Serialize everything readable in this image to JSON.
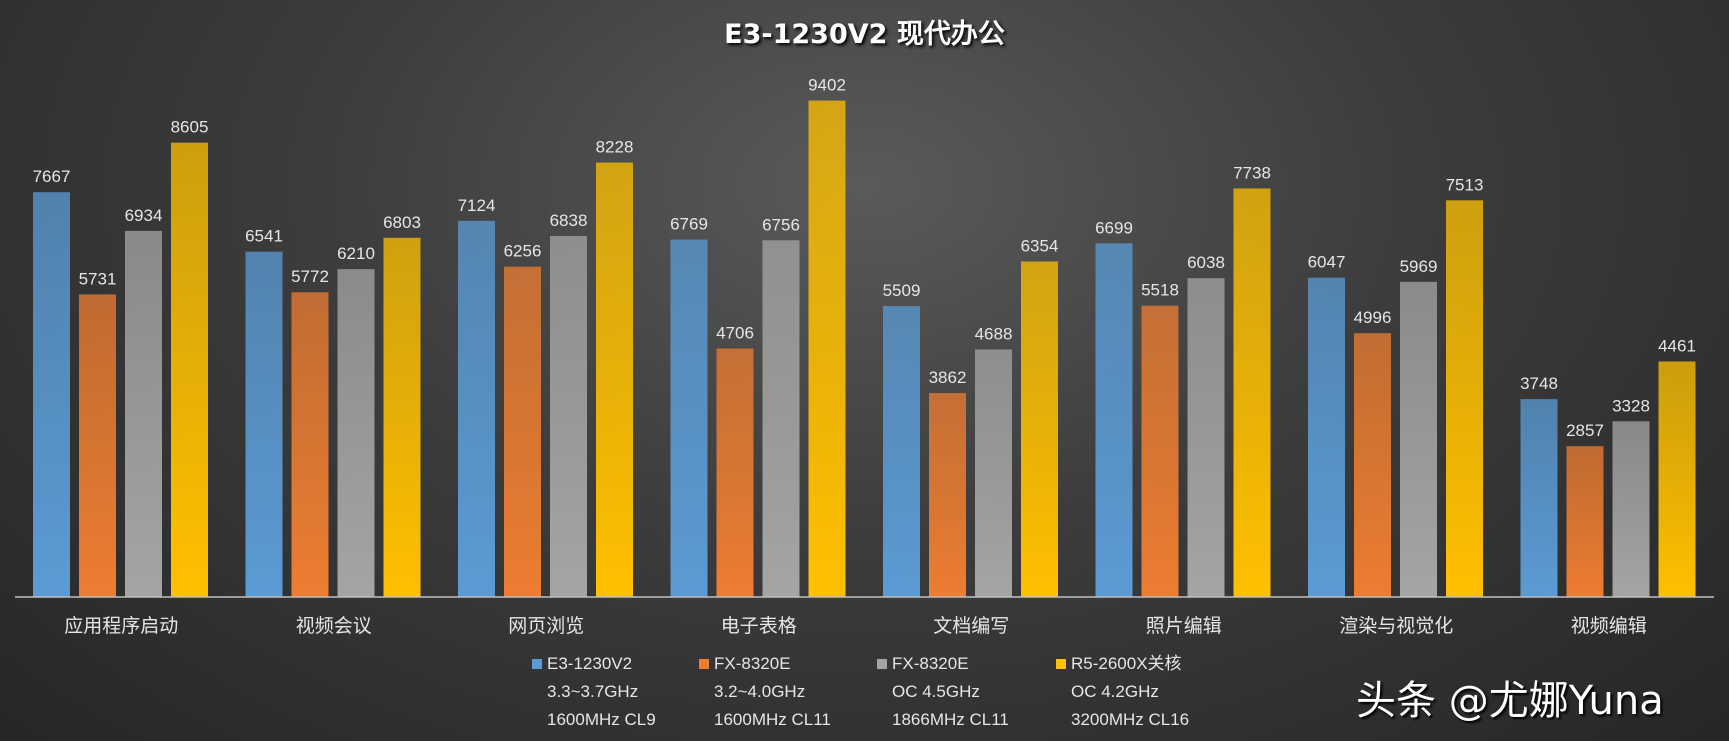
{
  "chart_data": {
    "type": "bar",
    "title": "E3-1230V2 现代办公",
    "categories": [
      "应用程序启动",
      "视频会议",
      "网页浏览",
      "电子表格",
      "文档编写",
      "照片编辑",
      "渲染与视觉化",
      "视频编辑"
    ],
    "series": [
      {
        "name": "E3-1230V2",
        "details": [
          "3.3~3.7GHz",
          "1600MHz CL9"
        ],
        "color": "#5b9bd5",
        "values": [
          7667,
          6541,
          7124,
          6769,
          5509,
          6699,
          6047,
          3748
        ]
      },
      {
        "name": "FX-8320E",
        "details": [
          "3.2~4.0GHz",
          "1600MHz CL11"
        ],
        "color": "#ed7d31",
        "values": [
          5731,
          5772,
          6256,
          4706,
          3862,
          5518,
          4996,
          2857
        ]
      },
      {
        "name": "FX-8320E",
        "details": [
          "OC 4.5GHz",
          "1866MHz CL11"
        ],
        "color": "#a5a5a5",
        "values": [
          6934,
          6210,
          6838,
          6756,
          4688,
          6038,
          5969,
          3328
        ]
      },
      {
        "name": "R5-2600X关核",
        "details": [
          "OC 4.2GHz",
          "3200MHz CL16"
        ],
        "color": "#ffc000",
        "values": [
          8605,
          6803,
          8228,
          9402,
          6354,
          7738,
          7513,
          4461
        ]
      }
    ],
    "ylim": [
      0,
      10000
    ],
    "grid": false,
    "legend_position": "bottom"
  },
  "watermark": "头条 @尤娜Yuna"
}
